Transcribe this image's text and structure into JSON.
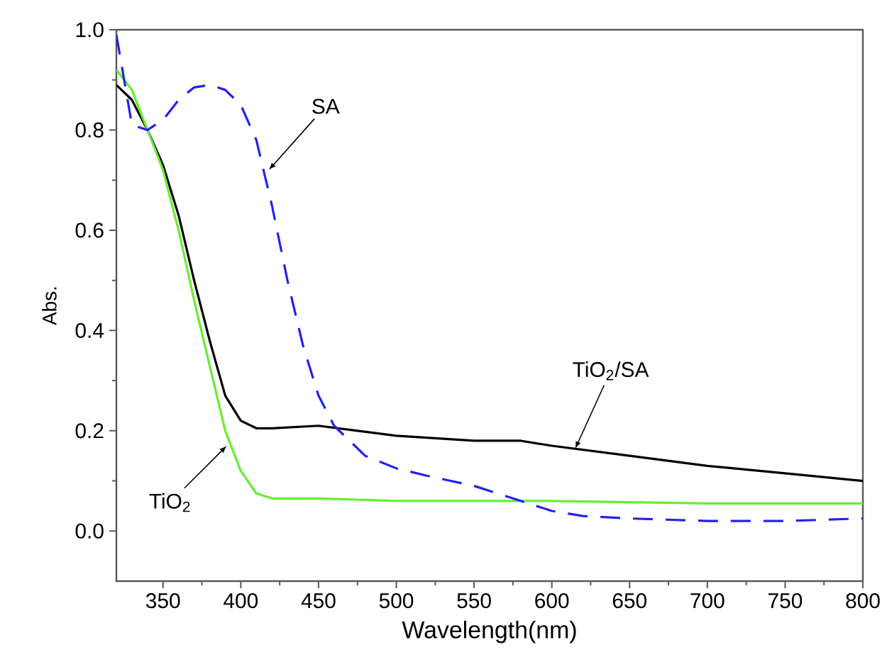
{
  "chart_data": {
    "type": "line",
    "xlabel": "Wavelength(nm)",
    "ylabel": "Abs.",
    "xlim": [
      320,
      800
    ],
    "ylim": [
      -0.1,
      1.0
    ],
    "xticks": [
      350,
      400,
      450,
      500,
      550,
      600,
      650,
      700,
      750,
      800
    ],
    "yticks": [
      {
        "value": 0,
        "label": "0.0"
      },
      0.2,
      0.4,
      0.6,
      0.8,
      {
        "value": 1,
        "label": "1.0"
      }
    ],
    "grid": false,
    "x": [
      320,
      330,
      340,
      350,
      360,
      370,
      380,
      390,
      400,
      410,
      420,
      450,
      475,
      500,
      550,
      580,
      600,
      650,
      700,
      750,
      800
    ],
    "series": [
      {
        "color": "#000000",
        "line_style": "solid",
        "values": [
          0.89,
          0.86,
          0.8,
          0.73,
          0.63,
          0.5,
          0.38,
          0.27,
          0.22,
          0.205,
          0.205,
          0.21,
          0.2,
          0.19,
          0.18,
          0.18,
          0.17,
          0.15,
          0.13,
          0.115,
          0.1
        ]
      },
      {
        "color": "#66ee33",
        "line_style": "solid",
        "x": [
          320,
          330,
          340,
          350,
          360,
          370,
          380,
          390,
          400,
          410,
          420,
          450,
          500,
          600,
          700,
          800
        ],
        "values": [
          0.92,
          0.88,
          0.8,
          0.72,
          0.6,
          0.46,
          0.33,
          0.2,
          0.12,
          0.075,
          0.065,
          0.065,
          0.06,
          0.06,
          0.055,
          0.055
        ]
      },
      {
        "color": "#2222ee",
        "line_style": "dashed",
        "x": [
          320,
          325,
          330,
          340,
          350,
          360,
          370,
          380,
          390,
          400,
          410,
          420,
          430,
          440,
          450,
          460,
          480,
          500,
          520,
          550,
          580,
          600,
          620,
          650,
          700,
          750,
          800
        ],
        "values": [
          0.99,
          0.9,
          0.81,
          0.8,
          0.82,
          0.86,
          0.885,
          0.89,
          0.88,
          0.85,
          0.78,
          0.65,
          0.5,
          0.37,
          0.27,
          0.21,
          0.15,
          0.125,
          0.11,
          0.09,
          0.06,
          0.04,
          0.03,
          0.025,
          0.02,
          0.02,
          0.025
        ]
      }
    ],
    "annotations": [
      {
        "text": "SA",
        "x": 418,
        "y": 0.72
      },
      {
        "text": "TiO$_{2}$/SA",
        "x": 615,
        "y": 0.164
      },
      {
        "text": "TiO$_{2}$",
        "x": 391,
        "y": 0.17
      }
    ]
  }
}
